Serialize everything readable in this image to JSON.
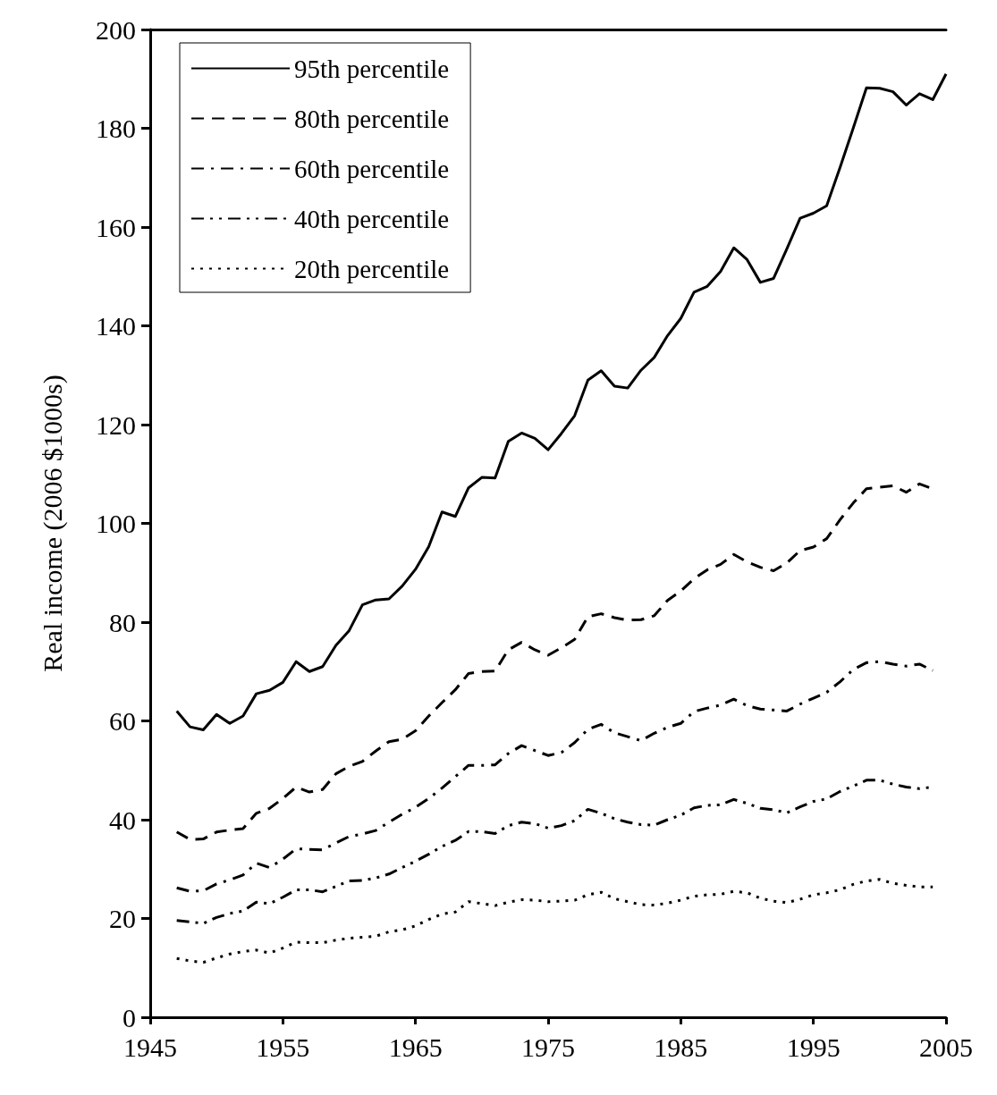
{
  "chart_data": {
    "type": "line",
    "ylabel": "Real income (2006 $1000s)",
    "x": [
      1947,
      1948,
      1949,
      1950,
      1951,
      1952,
      1953,
      1954,
      1955,
      1956,
      1957,
      1958,
      1959,
      1960,
      1961,
      1962,
      1963,
      1964,
      1965,
      1966,
      1967,
      1968,
      1969,
      1970,
      1971,
      1972,
      1973,
      1974,
      1975,
      1976,
      1977,
      1978,
      1979,
      1980,
      1981,
      1982,
      1983,
      1984,
      1985,
      1986,
      1987,
      1988,
      1989,
      1990,
      1991,
      1992,
      1993,
      1994,
      1995,
      1996,
      1997,
      1998,
      1999,
      2000,
      2001,
      2002,
      2003,
      2004,
      2005
    ],
    "series": [
      {
        "name": "95th percentile",
        "color": "#000000",
        "line_style": "solid",
        "values": [
          62,
          58.8,
          58.2,
          61.3,
          59.5,
          61,
          65.5,
          66.2,
          67.8,
          72,
          70,
          71,
          75.3,
          78.3,
          83.5,
          84.5,
          84.7,
          87.3,
          90.7,
          95.3,
          102.3,
          101.4,
          107.2,
          109.3,
          109.2,
          116.6,
          118.3,
          117.2,
          114.9,
          118.2,
          121.8,
          129,
          130.9,
          127.8,
          127.4,
          131,
          133.6,
          138,
          141.5,
          146.8,
          148,
          151,
          155.8,
          153.4,
          148.8,
          149.6,
          155.6,
          161.8,
          162.8,
          164.3,
          172,
          180,
          188.2,
          188.1,
          187.4,
          184.7,
          187,
          185.8,
          191
        ]
      },
      {
        "name": "80th percentile",
        "color": "#000000",
        "line_style": "dashed",
        "values": [
          37.5,
          36,
          36.1,
          37.5,
          37.9,
          38.2,
          41.3,
          42.3,
          44.3,
          46.6,
          45.6,
          46.1,
          49.3,
          50.8,
          51.8,
          53.9,
          55.8,
          56.3,
          58,
          61,
          63.7,
          66.3,
          69.6,
          70,
          70.1,
          74.4,
          75.9,
          74.4,
          73.3,
          74.8,
          76.5,
          81.1,
          81.7,
          80.9,
          80.4,
          80.5,
          81.3,
          84.4,
          86.3,
          88.8,
          90.6,
          91.7,
          93.7,
          92.2,
          91.1,
          90.4,
          92,
          94.5,
          95.2,
          96.9,
          100.7,
          104.1,
          107,
          107.3,
          107.6,
          106.3,
          108,
          107,
          null
        ]
      },
      {
        "name": "60th percentile",
        "color": "#000000",
        "line_style": "dashdot",
        "values": [
          26.2,
          25.5,
          25.6,
          27,
          27.8,
          28.8,
          31.2,
          30.3,
          32,
          34.1,
          34,
          33.9,
          35.3,
          36.6,
          37.1,
          37.8,
          39.5,
          41.1,
          42.5,
          44.3,
          46.4,
          48.7,
          51,
          51,
          51.1,
          53.4,
          55,
          54,
          53,
          53.6,
          55.6,
          58.3,
          59.3,
          57.6,
          56.8,
          56,
          57.5,
          58.7,
          59.5,
          61.9,
          62.6,
          63.2,
          64.4,
          63.1,
          62.4,
          62.2,
          62,
          63.4,
          64.6,
          65.8,
          67.9,
          70.4,
          71.8,
          72,
          71.5,
          71.1,
          71.5,
          70.2,
          null
        ]
      },
      {
        "name": "40th percentile",
        "color": "#000000",
        "line_style": "dashdotdot",
        "values": [
          19.6,
          19.3,
          19,
          20.2,
          21,
          21.5,
          23.3,
          23,
          24.3,
          25.8,
          25.8,
          25.4,
          26.5,
          27.6,
          27.7,
          28.2,
          29,
          30.3,
          31.6,
          33,
          34.6,
          35.8,
          37.6,
          37.6,
          37.2,
          38.8,
          39.5,
          39.2,
          38.3,
          38.8,
          39.8,
          42.1,
          41.3,
          40.2,
          39.5,
          39,
          38.9,
          40,
          40.9,
          42.4,
          42.9,
          43,
          44.1,
          43.3,
          42.3,
          42,
          41.4,
          42.6,
          43.7,
          44.2,
          45.7,
          46.8,
          48,
          48,
          47.2,
          46.6,
          46.3,
          46.6,
          null
        ]
      },
      {
        "name": "20th percentile",
        "color": "#000000",
        "line_style": "dotted",
        "values": [
          11.9,
          11.4,
          11.1,
          12,
          12.8,
          13.3,
          13.6,
          13,
          14,
          15.2,
          15.1,
          15.1,
          15.6,
          16,
          16.2,
          16.4,
          17.3,
          17.7,
          18.5,
          19.8,
          20.9,
          21.3,
          23.4,
          23,
          22.6,
          23.3,
          23.8,
          23.7,
          23.4,
          23.5,
          23.7,
          24.8,
          25.3,
          24,
          23.4,
          22.8,
          22.7,
          23.1,
          23.7,
          24.5,
          24.8,
          24.9,
          25.5,
          25.2,
          24.1,
          23.5,
          23.2,
          23.9,
          24.8,
          25.2,
          25.8,
          26.9,
          27.6,
          27.9,
          27.1,
          26.7,
          26.4,
          26.4,
          null
        ]
      }
    ],
    "xlim": [
      1945,
      2005
    ],
    "xticks": [
      1945,
      1955,
      1965,
      1975,
      1985,
      1995,
      2005
    ],
    "ylim": [
      0,
      200
    ],
    "yticks": [
      0,
      20,
      40,
      60,
      80,
      100,
      120,
      140,
      160,
      180,
      200
    ],
    "grid": false,
    "legend": "top left",
    "marker": "none"
  }
}
